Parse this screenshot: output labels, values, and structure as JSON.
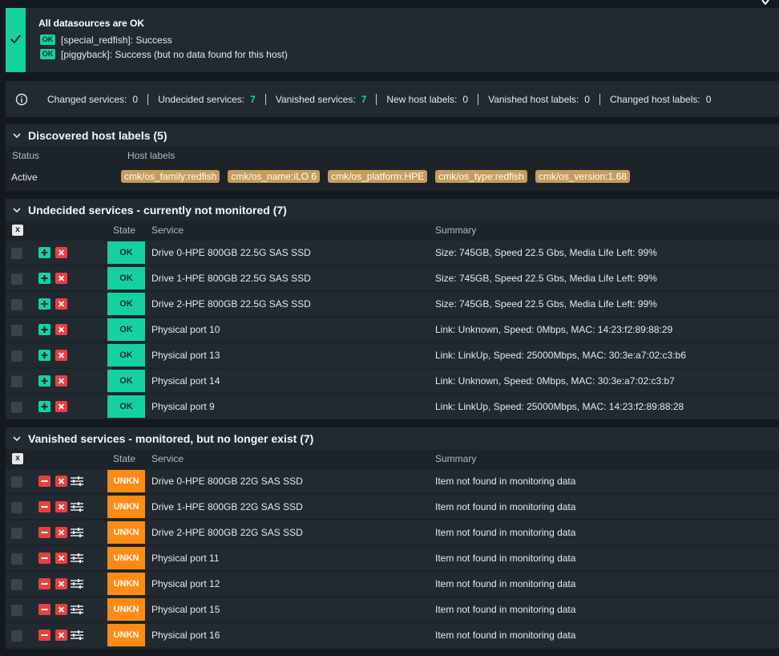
{
  "datasources": {
    "title": "All datasources are OK",
    "items": [
      {
        "badge": "OK",
        "text": "[special_redfish]: Success"
      },
      {
        "badge": "OK",
        "text": "[piggyback]: Success (but no data found for this host)"
      }
    ]
  },
  "summary": {
    "stats": [
      {
        "label": "Changed services:",
        "value": "0",
        "highlight": false
      },
      {
        "label": "Undecided services:",
        "value": "7",
        "highlight": true
      },
      {
        "label": "Vanished services:",
        "value": "7",
        "highlight": true
      },
      {
        "label": "New host labels:",
        "value": "0",
        "highlight": false
      },
      {
        "label": "Vanished host labels:",
        "value": "0",
        "highlight": false
      },
      {
        "label": "Changed host labels:",
        "value": "0",
        "highlight": false
      }
    ]
  },
  "host_labels": {
    "title": "Discovered host labels (5)",
    "col_status": "Status",
    "col_labels": "Host labels",
    "status": "Active",
    "labels": [
      "cmk/os_family:redfish",
      "cmk/os_name:iLO 6",
      "cmk/os_platform:HPE",
      "cmk/os_type:redfish",
      "cmk/os_version:1.68"
    ]
  },
  "undecided": {
    "title": "Undecided services - currently not monitored (7)",
    "x_label": "x",
    "col_state": "State",
    "col_service": "Service",
    "col_summary": "Summary",
    "rows": [
      {
        "state": "OK",
        "service": "Drive 0-HPE 800GB 22.5G SAS SSD",
        "summary": "Size: 745GB, Speed 22.5 Gbs, Media Life Left: 99%"
      },
      {
        "state": "OK",
        "service": "Drive 1-HPE 800GB 22.5G SAS SSD",
        "summary": "Size: 745GB, Speed 22.5 Gbs, Media Life Left: 99%"
      },
      {
        "state": "OK",
        "service": "Drive 2-HPE 800GB 22.5G SAS SSD",
        "summary": "Size: 745GB, Speed 22.5 Gbs, Media Life Left: 99%"
      },
      {
        "state": "OK",
        "service": "Physical port 10",
        "summary": "Link: Unknown, Speed: 0Mbps, MAC: 14:23:f2:89:88:29"
      },
      {
        "state": "OK",
        "service": "Physical port 13",
        "summary": "Link: LinkUp, Speed: 25000Mbps, MAC: 30:3e:a7:02:c3:b6"
      },
      {
        "state": "OK",
        "service": "Physical port 14",
        "summary": "Link: Unknown, Speed: 0Mbps, MAC: 30:3e:a7:02:c3:b7"
      },
      {
        "state": "OK",
        "service": "Physical port 9",
        "summary": "Link: LinkUp, Speed: 25000Mbps, MAC: 14:23:f2:89:88:28"
      }
    ]
  },
  "vanished": {
    "title": "Vanished services - monitored, but no longer exist (7)",
    "x_label": "x",
    "col_state": "State",
    "col_service": "Service",
    "col_summary": "Summary",
    "rows": [
      {
        "state": "UNKN",
        "service": "Drive 0-HPE 800GB 22G SAS SSD",
        "summary": "Item not found in monitoring data"
      },
      {
        "state": "UNKN",
        "service": "Drive 1-HPE 800GB 22G SAS SSD",
        "summary": "Item not found in monitoring data"
      },
      {
        "state": "UNKN",
        "service": "Drive 2-HPE 800GB 22G SAS SSD",
        "summary": "Item not found in monitoring data"
      },
      {
        "state": "UNKN",
        "service": "Physical port 11",
        "summary": "Item not found in monitoring data"
      },
      {
        "state": "UNKN",
        "service": "Physical port 12",
        "summary": "Item not found in monitoring data"
      },
      {
        "state": "UNKN",
        "service": "Physical port 15",
        "summary": "Item not found in monitoring data"
      },
      {
        "state": "UNKN",
        "service": "Physical port 16",
        "summary": "Item not found in monitoring data"
      }
    ]
  },
  "colors": {
    "ok": "#15d1a0",
    "unkn": "#ff8b14",
    "delete": "#e8403f",
    "label": "#c79d5a"
  }
}
